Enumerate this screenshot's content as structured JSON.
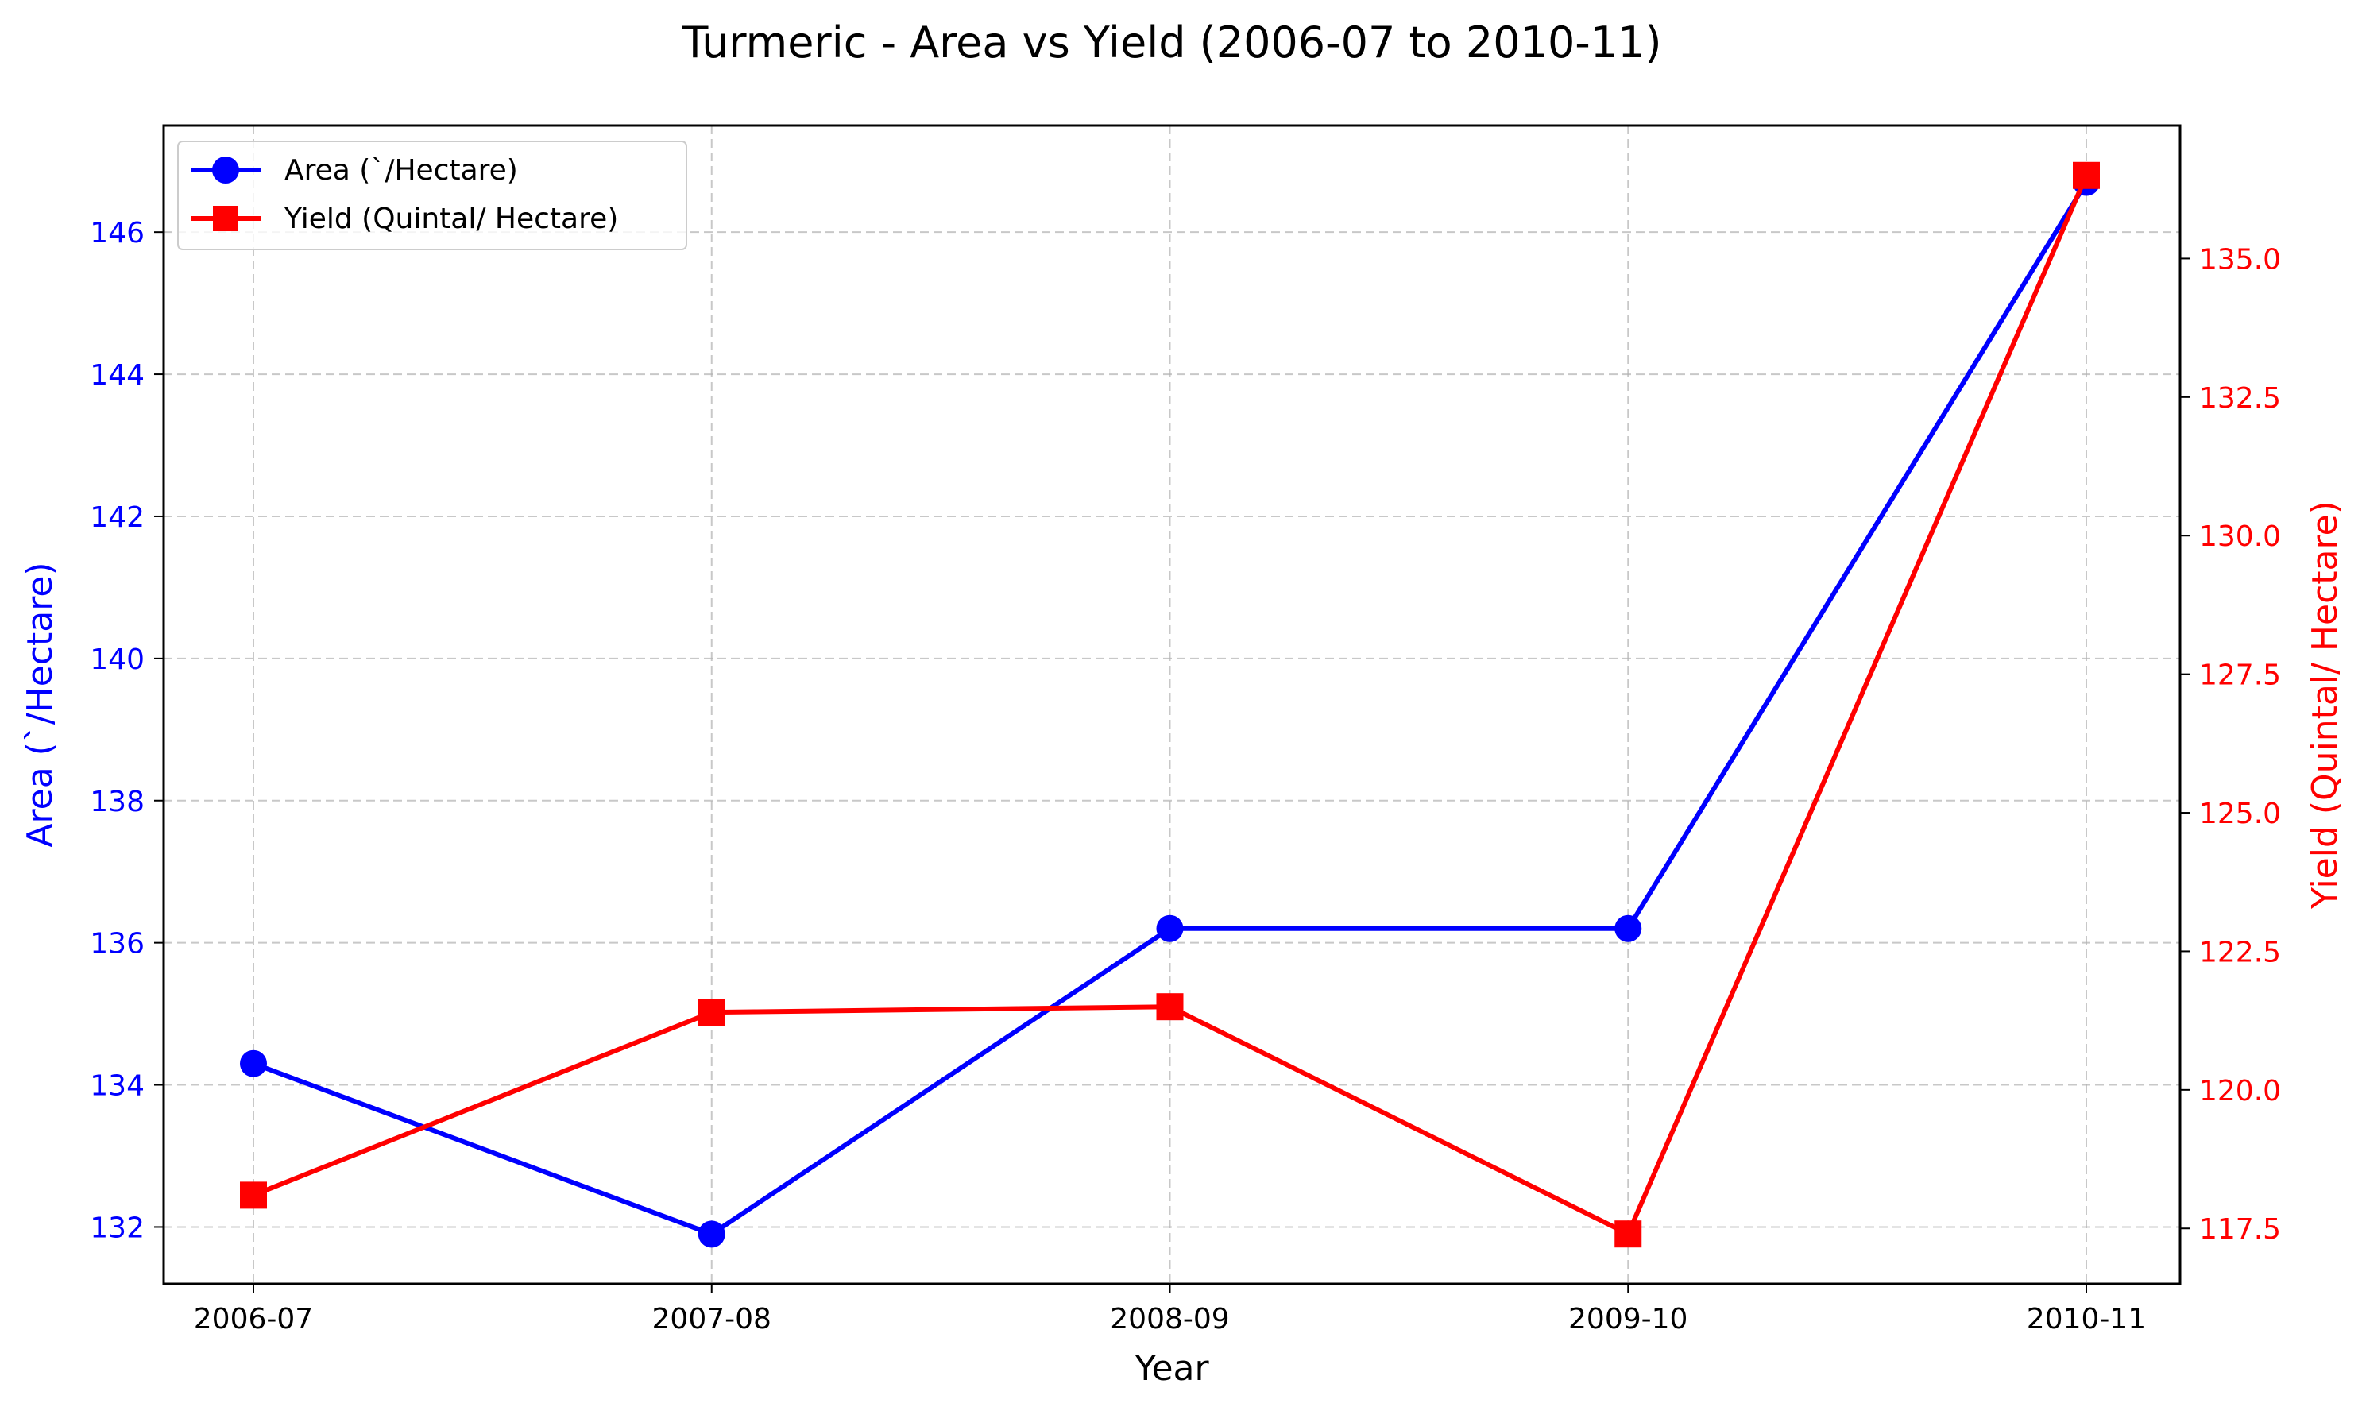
{
  "chart_data": {
    "type": "line",
    "title": "Turmeric  - Area vs Yield (2006-07 to 2010-11)",
    "xlabel": "Year",
    "categories": [
      "2006-07",
      "2007-08",
      "2008-09",
      "2009-10",
      "2010-11"
    ],
    "series": [
      {
        "name": "Area (`/Hectare)",
        "axis": "left",
        "marker": "circle",
        "color": "#0000ff",
        "values": [
          134.3,
          131.9,
          136.2,
          136.2,
          146.7
        ]
      },
      {
        "name": "Yield (Quintal/ Hectare)",
        "axis": "right",
        "marker": "square",
        "color": "#ff0000",
        "values": [
          118.1,
          121.4,
          121.5,
          117.4,
          136.5
        ]
      }
    ],
    "y_left": {
      "label": "Area (`/Hectare)",
      "color": "#0000ff",
      "ylim": [
        131.2,
        147.5
      ],
      "ticks": [
        132,
        134,
        136,
        138,
        140,
        142,
        144,
        146
      ],
      "tick_labels": [
        "132",
        "134",
        "136",
        "138",
        "140",
        "142",
        "144",
        "146"
      ]
    },
    "y_right": {
      "label": "Yield (Quintal/ Hectare)",
      "color": "#ff0000",
      "ylim": [
        116.5,
        137.4
      ],
      "ticks": [
        117.5,
        120.0,
        122.5,
        125.0,
        127.5,
        130.0,
        132.5,
        135.0
      ],
      "tick_labels": [
        "117.5",
        "120.0",
        "122.5",
        "125.0",
        "127.5",
        "130.0",
        "132.5",
        "135.0"
      ]
    },
    "grid": true,
    "legend_position": "top-left"
  }
}
